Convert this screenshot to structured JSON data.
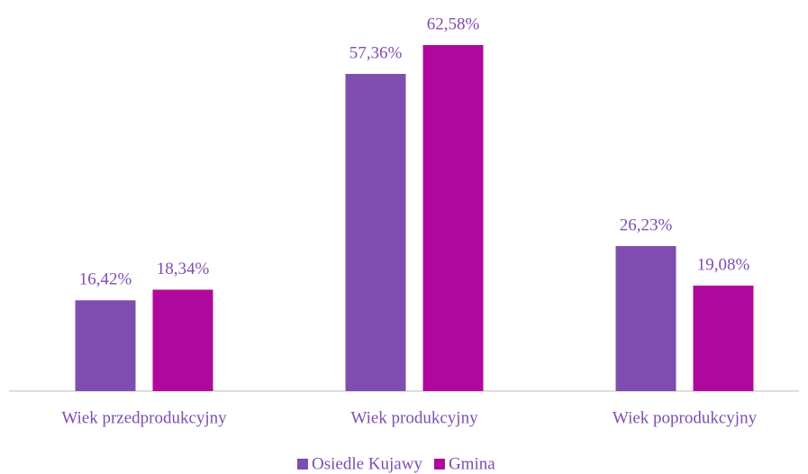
{
  "chart_data": {
    "type": "bar",
    "categories": [
      "Wiek przedprodukcyjny",
      "Wiek produkcyjny",
      "Wiek poprodukcyjny"
    ],
    "series": [
      {
        "name": "Osiedle Kujawy",
        "color": "#7f4db0",
        "values": [
          16.42,
          57.36,
          26.23
        ],
        "value_labels": [
          "16,42%",
          "57,36%",
          "26,23%"
        ]
      },
      {
        "name": "Gmina",
        "color": "#b0089c",
        "values": [
          18.34,
          62.58,
          19.08
        ],
        "value_labels": [
          "18,34%",
          "62,58%",
          "19,08%"
        ]
      }
    ],
    "legend": "bottom"
  }
}
